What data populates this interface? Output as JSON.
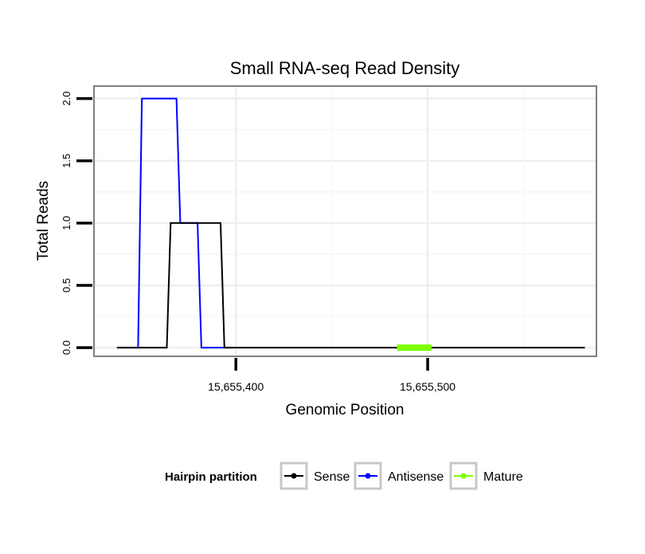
{
  "chart_data": {
    "type": "line",
    "title": "Small RNA-seq Read Density",
    "xlabel": "Genomic Position",
    "ylabel": "Total Reads",
    "xlim": [
      15655326,
      15655588
    ],
    "ylim": [
      -0.07,
      2.1
    ],
    "xticks": [
      {
        "value": 15655400,
        "label": "15,655,400"
      },
      {
        "value": 15655500,
        "label": "15,655,500"
      }
    ],
    "yticks": [
      {
        "value": 0.0,
        "label": "0.0"
      },
      {
        "value": 0.5,
        "label": "0.5"
      },
      {
        "value": 1.0,
        "label": "1.0"
      },
      {
        "value": 1.5,
        "label": "1.5"
      },
      {
        "value": 2.0,
        "label": "2.0"
      }
    ],
    "grid": true,
    "legend": {
      "title": "Hairpin partition",
      "position": "bottom"
    },
    "series": [
      {
        "name": "Antisense",
        "color": "#0000ff",
        "x": [
          15655338,
          15655349,
          15655351,
          15655369,
          15655371,
          15655380,
          15655382,
          15655398
        ],
        "y": [
          0,
          0,
          2,
          2,
          1,
          1,
          0,
          0
        ]
      },
      {
        "name": "Sense",
        "color": "#000000",
        "x": [
          15655338,
          15655364,
          15655366,
          15655392,
          15655394,
          15655582
        ],
        "y": [
          0,
          0,
          1,
          1,
          0,
          0
        ]
      },
      {
        "name": "Mature",
        "color": "#7fff00",
        "x": [
          15655484,
          15655502
        ],
        "y": [
          0,
          0
        ]
      }
    ]
  }
}
